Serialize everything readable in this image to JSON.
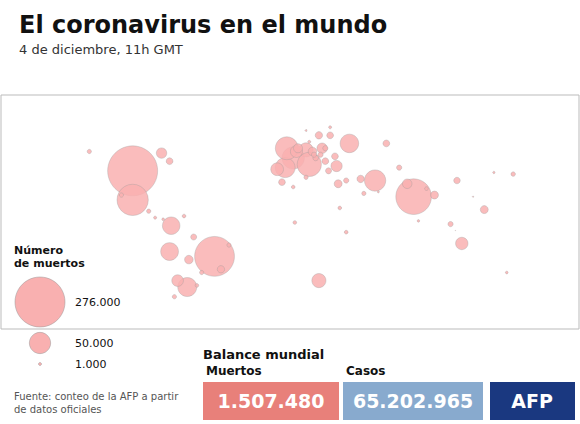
{
  "chart_data": {
    "type": "scatter",
    "title": "El coronavirus en el mundo",
    "subtitle": "4 de diciembre, 11h GMT",
    "source": "Fuente: conteo de la AFP a partir de datos oficiales",
    "x": [
      -98,
      -98,
      -47,
      -64,
      -74,
      -75,
      -66,
      -60,
      -43,
      -38,
      -80,
      -55,
      -70,
      -63,
      2,
      10,
      12,
      -3,
      -2,
      14,
      20,
      37,
      28,
      4,
      29,
      35,
      44,
      53,
      77,
      104,
      127,
      139,
      121,
      107,
      100,
      90,
      73,
      35,
      3,
      18,
      31,
      30,
      10,
      2,
      -5,
      135,
      -8,
      18,
      10,
      5,
      60,
      46,
      85,
      -105,
      -88,
      -84,
      -79,
      16,
      22,
      25,
      114,
      55,
      103,
      -75,
      -125,
      22,
      19,
      -58,
      -72,
      68,
      80,
      24,
      15,
      25,
      12
    ],
    "y": [
      38,
      20,
      -15,
      -34,
      4,
      -12,
      10,
      -3,
      -23,
      -8,
      49,
      -25,
      -30,
      -17,
      46,
      51,
      42,
      40,
      52,
      50,
      52,
      55,
      47,
      50,
      41,
      32,
      33,
      32,
      22,
      32,
      37,
      36,
      14,
      -7,
      5,
      23,
      30,
      0,
      6,
      -30,
      15,
      30,
      34,
      28,
      31,
      -25,
      39,
      60,
      63,
      52,
      55,
      24,
      27,
      23,
      13,
      9,
      8,
      46,
      44,
      60,
      22,
      25,
      1,
      44,
      50,
      52,
      48,
      -33,
      -40,
      40,
      7,
      38,
      48,
      65,
      56
    ],
    "sizes": [
      276000,
      108000,
      175000,
      40000,
      34000,
      35000,
      1500,
      4000,
      6000,
      2000,
      12000,
      2000,
      15000,
      8000,
      55000,
      22000,
      65000,
      44000,
      58000,
      8000,
      12000,
      38000,
      5000,
      16000,
      14000,
      3000,
      6000,
      50000,
      140000,
      4700,
      600,
      2200,
      7000,
      17000,
      3000,
      7000,
      10000,
      1500,
      1500,
      22000,
      1500,
      7000,
      2000,
      1500,
      5000,
      800,
      18000,
      6000,
      400,
      9000,
      5000,
      2000,
      1500,
      2000,
      2000,
      1000,
      800,
      3500,
      5000,
      5000,
      150,
      500,
      29,
      5000,
      2000,
      3000,
      3000,
      1500,
      2000,
      3000,
      700,
      4000,
      3000,
      1000,
      1000
    ],
    "color": "#f9b0b0",
    "xlim": [
      -180,
      180
    ],
    "ylim": [
      -60,
      85
    ],
    "tick_labels": false,
    "grid": false,
    "size_legend": {
      "title": "Número\nde muertos",
      "items": [
        {
          "label": "276.000",
          "value": 276000
        },
        {
          "label": "50.000",
          "value": 50000
        },
        {
          "label": "1.000",
          "value": 1000
        }
      ]
    },
    "stats": {
      "title": "Balance mundial",
      "items": [
        {
          "label": "Muertos",
          "value": 1507480,
          "value_label": "1.507.480",
          "color": "#e8807a"
        },
        {
          "label": "Casos",
          "value": 65202965,
          "value_label": "65.202.965",
          "color": "#88aace"
        }
      ]
    },
    "logo": {
      "label": "AFP",
      "color": "#1a3880"
    }
  }
}
